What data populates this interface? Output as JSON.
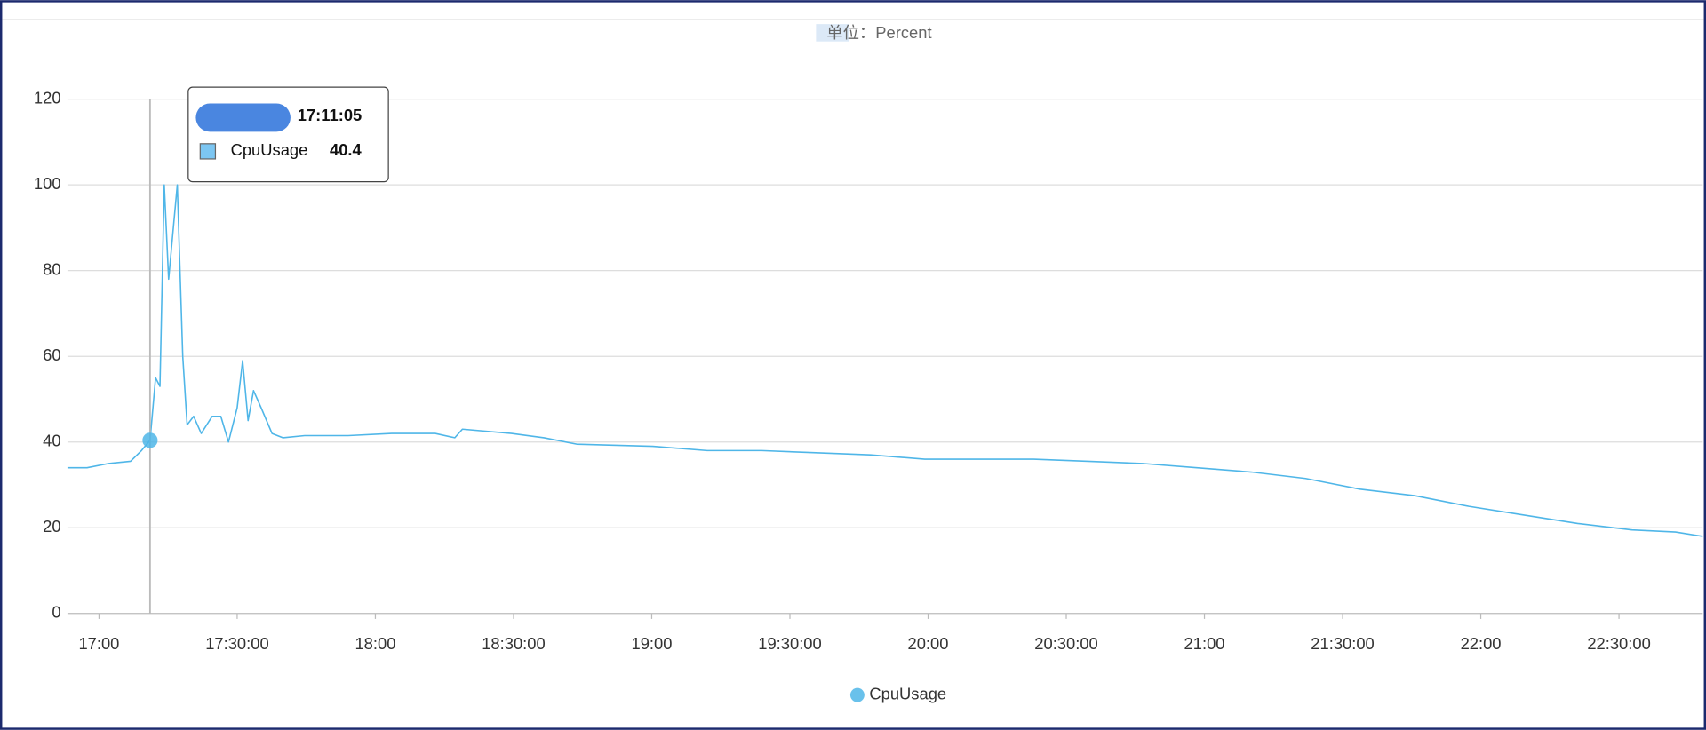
{
  "chart_data": {
    "type": "line",
    "unit_label": "单位：Percent",
    "x": [
      "16:53:09",
      "16:57:24",
      "17:02:08",
      "17:06:51",
      "17:09:13",
      "17:11:05",
      "17:12:17",
      "17:13:14",
      "17:14:10",
      "17:15:07",
      "17:17:00",
      "17:18:11",
      "17:19:08",
      "17:20:33",
      "17:22:12",
      "17:24:34",
      "17:26:27",
      "17:28:07",
      "17:30:00",
      "17:31:11",
      "17:32:22",
      "17:33:33",
      "17:35:12",
      "17:37:34",
      "17:39:55",
      "17:44:39",
      "17:54:06",
      "18:03:33",
      "18:12:59",
      "18:17:15",
      "18:18:54",
      "18:29:32",
      "18:36:37",
      "18:43:42",
      "19:00:14",
      "19:12:03",
      "19:23:51",
      "19:35:40",
      "19:47:29",
      "19:59:17",
      "20:11:06",
      "20:22:55",
      "20:34:43",
      "20:46:32",
      "20:58:21",
      "21:10:10",
      "21:21:58",
      "21:33:47",
      "21:45:36",
      "21:57:24",
      "22:09:13",
      "22:21:02",
      "22:32:50",
      "22:42:17",
      "22:48:11"
    ],
    "series": [
      {
        "name": "CpuUsage",
        "color": "#4fb6e8",
        "values": [
          34,
          34,
          35,
          35.5,
          38,
          40.4,
          55,
          53,
          100,
          78,
          100,
          60,
          44,
          46,
          42,
          46,
          46,
          40,
          48,
          59,
          45,
          52,
          48,
          42,
          41,
          41.5,
          41.5,
          42,
          42,
          41,
          43,
          42,
          41,
          39.5,
          39,
          38,
          38,
          37.5,
          37,
          36,
          36,
          36,
          35.5,
          35,
          34,
          33,
          31.5,
          29,
          27.5,
          25,
          23,
          21,
          19.5,
          19,
          18
        ]
      }
    ],
    "xlim": [
      "16:53:09",
      "22:48:11"
    ],
    "xticks": [
      {
        "value": "17:00:00",
        "label": "17:00"
      },
      "17:30:00",
      {
        "value": "18:00:00",
        "label": "18:00"
      },
      "18:30:00",
      {
        "value": "19:00:00",
        "label": "19:00"
      },
      "19:30:00",
      {
        "value": "20:00:00",
        "label": "20:00"
      },
      "20:30:00",
      {
        "value": "21:00:00",
        "label": "21:00"
      },
      "21:30:00",
      {
        "value": "22:00:00",
        "label": "22:00"
      },
      "22:30:00"
    ],
    "ylim": [
      0,
      120
    ],
    "yticks": [
      0,
      20,
      40,
      60,
      80,
      100,
      120
    ],
    "grid": true,
    "tooltip_index": 5,
    "legend": "bottom"
  }
}
